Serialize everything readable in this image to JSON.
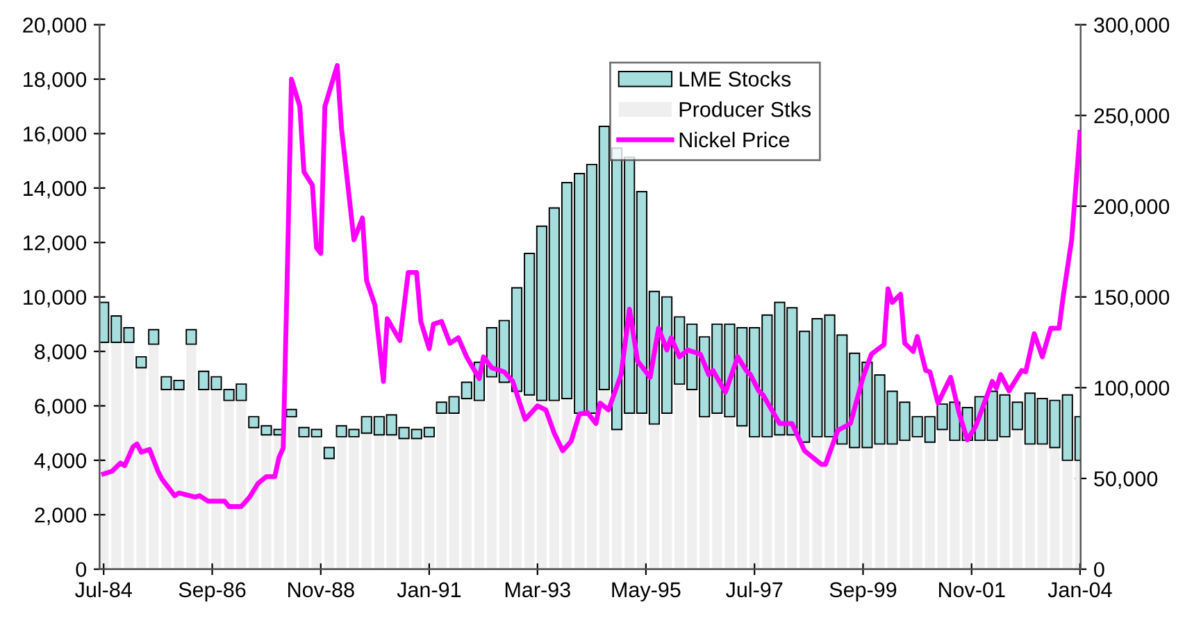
{
  "chart_data": {
    "type": "bar",
    "stacked": true,
    "legend": "top right",
    "grid": false,
    "xlim": [
      "1984-06-15",
      "2004-01-20"
    ],
    "xticks": [
      {
        "value": "1984-07",
        "label": "Jul-84"
      },
      {
        "value": "1986-09",
        "label": "Sep-86"
      },
      {
        "value": "1988-11",
        "label": "Nov-88"
      },
      {
        "value": "1991-01",
        "label": "Jan-91"
      },
      {
        "value": "1993-03",
        "label": "Mar-93"
      },
      {
        "value": "1995-05",
        "label": "May-95"
      },
      {
        "value": "1997-07",
        "label": "Jul-97"
      },
      {
        "value": "1999-09",
        "label": "Sep-99"
      },
      {
        "value": "2001-11",
        "label": "Nov-01"
      },
      {
        "value": "2004-01",
        "label": "Jan-04"
      }
    ],
    "ylim": [
      0,
      20000
    ],
    "yticks": [
      0,
      {
        "value": 2000,
        "label": "2,000"
      },
      {
        "value": 4000,
        "label": "4,000"
      },
      {
        "value": 6000,
        "label": "6,000"
      },
      {
        "value": 8000,
        "label": "8,000"
      },
      {
        "value": 10000,
        "label": "10,000"
      },
      {
        "value": 12000,
        "label": "12,000"
      },
      {
        "value": 14000,
        "label": "14,000"
      },
      {
        "value": 16000,
        "label": "16,000"
      },
      {
        "value": 18000,
        "label": "18,000"
      },
      {
        "value": 20000,
        "label": "20,000"
      }
    ],
    "y2lim": [
      0,
      300000
    ],
    "y2ticks": [
      0,
      {
        "value": 50000,
        "label": "50,000"
      },
      {
        "value": 100000,
        "label": "100,000"
      },
      {
        "value": 150000,
        "label": "150,000"
      },
      {
        "value": 200000,
        "label": "200,000"
      },
      {
        "value": 250000,
        "label": "250,000"
      },
      {
        "value": 300000,
        "label": "300,000"
      }
    ],
    "x": [
      "1984-07",
      "1984-10",
      "1985-01",
      "1985-04",
      "1985-07",
      "1985-10",
      "1986-01",
      "1986-04",
      "1986-07",
      "1986-10",
      "1987-01",
      "1987-04",
      "1987-07",
      "1987-10",
      "1988-01",
      "1988-04",
      "1988-07",
      "1988-10",
      "1989-01",
      "1989-04",
      "1989-07",
      "1989-10",
      "1990-01",
      "1990-04",
      "1990-07",
      "1990-10",
      "1991-01",
      "1991-04",
      "1991-07",
      "1991-10",
      "1992-01",
      "1992-04",
      "1992-07",
      "1992-10",
      "1993-01",
      "1993-04",
      "1993-07",
      "1993-10",
      "1994-01",
      "1994-04",
      "1994-07",
      "1994-10",
      "1995-01",
      "1995-04",
      "1995-07",
      "1995-10",
      "1996-01",
      "1996-04",
      "1996-07",
      "1996-10",
      "1997-01",
      "1997-04",
      "1997-07",
      "1997-10",
      "1998-01",
      "1998-04",
      "1998-07",
      "1998-10",
      "1999-01",
      "1999-04",
      "1999-07",
      "1999-10",
      "2000-01",
      "2000-04",
      "2000-07",
      "2000-10",
      "2001-01",
      "2001-04",
      "2001-07",
      "2001-10",
      "2002-01",
      "2002-04",
      "2002-07",
      "2002-10",
      "2003-01",
      "2003-04",
      "2003-07",
      "2003-10",
      "2004-01"
    ],
    "series": [
      {
        "name": "Producer Stks",
        "axis": "y2",
        "color": "#efefef",
        "values": [
          125000,
          125000,
          125000,
          111000,
          124000,
          99000,
          99000,
          124000,
          99000,
          99000,
          93000,
          93000,
          78000,
          74000,
          74000,
          84000,
          73000,
          73000,
          61000,
          73000,
          73000,
          75000,
          74000,
          74000,
          72000,
          72000,
          73000,
          86000,
          86000,
          94000,
          93000,
          106000,
          103000,
          98000,
          96000,
          93000,
          93000,
          94000,
          86000,
          86000,
          99000,
          77000,
          86000,
          86000,
          80000,
          86000,
          102000,
          99000,
          84000,
          86000,
          84000,
          79000,
          73000,
          73000,
          74000,
          74000,
          70000,
          73000,
          73000,
          69000,
          67000,
          67000,
          69000,
          69000,
          71000,
          73000,
          70000,
          77000,
          71000,
          71000,
          71000,
          71000,
          73000,
          77000,
          69000,
          69000,
          67000,
          60000,
          60000
        ]
      },
      {
        "name": "LME Stocks",
        "axis": "y2",
        "color": "#a6dede",
        "values": [
          22000,
          14500,
          8000,
          6000,
          8000,
          7000,
          5000,
          8000,
          10000,
          7000,
          6000,
          9000,
          6000,
          5000,
          3000,
          4000,
          5000,
          4000,
          6000,
          6000,
          4000,
          9000,
          10000,
          11000,
          6000,
          5000,
          5000,
          6000,
          9000,
          9000,
          21000,
          27000,
          34000,
          57000,
          78000,
          96000,
          106000,
          119000,
          132000,
          137000,
          145000,
          155000,
          141000,
          122000,
          73000,
          64000,
          37000,
          36000,
          44000,
          49000,
          51000,
          54000,
          60000,
          67000,
          73000,
          70000,
          61000,
          65000,
          67000,
          60000,
          52000,
          47000,
          38000,
          29000,
          21000,
          11000,
          14000,
          14000,
          21000,
          18000,
          24000,
          27000,
          23000,
          15000,
          28000,
          25000,
          26000,
          36000,
          24000
        ]
      },
      {
        "name": "Nickel Price",
        "type": "line",
        "color": "#ff00ff",
        "x": [
          "1984-07",
          "1984-09",
          "1984-11",
          "1984-12",
          "1985-02",
          "1985-03",
          "1985-04",
          "1985-06",
          "1985-08",
          "1985-09",
          "1985-12",
          "1986-01",
          "1986-05",
          "1986-06",
          "1986-08",
          "1986-12",
          "1987-01",
          "1987-04",
          "1987-06",
          "1987-08",
          "1987-10",
          "1987-12",
          "1988-01",
          "1988-02",
          "1988-03",
          "1988-04",
          "1988-06",
          "1988-07",
          "1988-09",
          "1988-10",
          "1988-11",
          "1988-12",
          "1989-03",
          "1989-04",
          "1989-07",
          "1989-09",
          "1989-10",
          "1989-12",
          "1990-02",
          "1990-03",
          "1990-06",
          "1990-08",
          "1990-10",
          "1990-11",
          "1991-01",
          "1991-02",
          "1991-04",
          "1991-06",
          "1991-08",
          "1991-10",
          "1992-01",
          "1992-02",
          "1992-04",
          "1992-07",
          "1992-09",
          "1992-12",
          "1993-03",
          "1993-05",
          "1993-07",
          "1993-09",
          "1993-11",
          "1994-01",
          "1994-03",
          "1994-05",
          "1994-06",
          "1994-08",
          "1994-11",
          "1995-01",
          "1995-03",
          "1995-06",
          "1995-08",
          "1995-10",
          "1995-11",
          "1996-01",
          "1996-03",
          "1996-06",
          "1996-08",
          "1996-09",
          "1996-12",
          "1997-03",
          "1997-05",
          "1997-06",
          "1997-08",
          "1997-09",
          "1998-01",
          "1998-04",
          "1998-07",
          "1998-11",
          "1998-12",
          "1999-03",
          "1999-06",
          "1999-09",
          "1999-11",
          "2000-02",
          "2000-03",
          "2000-04",
          "2000-06",
          "2000-07",
          "2000-09",
          "2000-10",
          "2000-12",
          "2001-01",
          "2001-03",
          "2001-06",
          "2001-08",
          "2001-10",
          "2001-12",
          "2002-04",
          "2002-05",
          "2002-06",
          "2002-08",
          "2002-11",
          "2002-12",
          "2003-02",
          "2003-04",
          "2003-06",
          "2003-08",
          "2003-09",
          "2003-11",
          "2004-01"
        ],
        "values": [
          3500,
          3600,
          3900,
          3800,
          4500,
          4600,
          4300,
          4400,
          3600,
          3300,
          2700,
          2800,
          2650,
          2700,
          2500,
          2500,
          2300,
          2300,
          2650,
          3150,
          3400,
          3400,
          4100,
          4450,
          10700,
          18000,
          17000,
          14600,
          14100,
          11800,
          11600,
          17000,
          18500,
          16200,
          12100,
          12900,
          10600,
          9700,
          6900,
          9200,
          8400,
          10900,
          10900,
          9100,
          8100,
          9000,
          9100,
          8300,
          8500,
          7800,
          7000,
          7800,
          7400,
          7250,
          6900,
          5500,
          6000,
          5850,
          5000,
          4350,
          4700,
          5700,
          5750,
          5350,
          6100,
          5850,
          7150,
          9550,
          7650,
          7050,
          8850,
          8050,
          8500,
          7800,
          8050,
          7900,
          7150,
          7300,
          6500,
          7800,
          7300,
          7150,
          6550,
          6400,
          5350,
          5350,
          4350,
          3850,
          3850,
          5100,
          5350,
          7050,
          7900,
          8250,
          10300,
          9800,
          10100,
          8300,
          8000,
          8550,
          7300,
          7250,
          6100,
          7050,
          5750,
          4750,
          5250,
          6900,
          6650,
          7150,
          6550,
          7300,
          7250,
          8650,
          7800,
          8850,
          8850,
          10050,
          12100,
          16050
        ]
      }
    ]
  }
}
